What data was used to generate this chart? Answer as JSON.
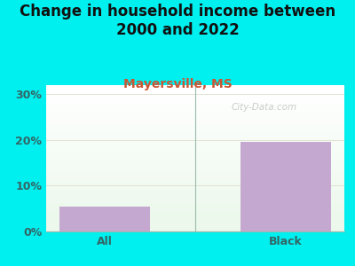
{
  "title": "Change in household income between\n2000 and 2022",
  "subtitle": "Mayersville, MS",
  "categories": [
    "All",
    "Black"
  ],
  "values": [
    5.5,
    19.5
  ],
  "bar_color": "#c4a8d0",
  "title_fontsize": 12,
  "subtitle_fontsize": 10,
  "subtitle_color": "#cc5533",
  "tick_label_color": "#336666",
  "background_outer": "#00efef",
  "ylim": [
    0,
    32
  ],
  "yticks": [
    0,
    10,
    20,
    30
  ],
  "ytick_labels": [
    "0%",
    "10%",
    "20%",
    "30%"
  ],
  "watermark": "City-Data.com",
  "grid_color": "#ddddcc",
  "divider_color": "#99bbaa"
}
